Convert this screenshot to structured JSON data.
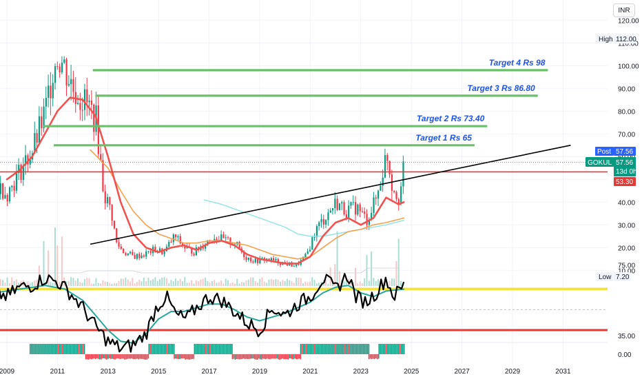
{
  "currency_button": "INR",
  "chart_data": {
    "type": "candlestick",
    "symbol": "GOKUL",
    "timeframe_note": "13d 0h",
    "x_ticks": [
      "2009",
      "2011",
      "2013",
      "2015",
      "2017",
      "2019",
      "2021",
      "2023",
      "2025",
      "2027",
      "2029",
      "2031"
    ],
    "price_axis": {
      "ylim": [
        0,
        122
      ],
      "ticks": [
        "10.00",
        "20.00",
        "30.00",
        "40.00",
        "50.00",
        "60.00",
        "70.00",
        "80.00",
        "90.00",
        "100.00",
        "110.00",
        "120.00"
      ]
    },
    "indicator_axis": {
      "ticks": [
        "75.00",
        "35.00"
      ]
    },
    "histogram_axis": {
      "ticks": [
        "0.00"
      ]
    },
    "high": {
      "label": "High",
      "value": "112.00"
    },
    "low": {
      "label": "Low",
      "value": "7.20"
    },
    "post": {
      "label": "Post",
      "value": "57.56"
    },
    "last": {
      "label": "GOKUL",
      "value": "57.56",
      "countdown": "13d 0h"
    },
    "support_level": {
      "value": "53.30",
      "price": 53.3,
      "color": "#e53935"
    },
    "targets": [
      {
        "label": "Target 1 Rs 65",
        "price": 65,
        "from_year": 2010.85,
        "to_year": 2027.5
      },
      {
        "label": "Target 2 Rs 73.40",
        "price": 73.4,
        "from_year": 2010.45,
        "to_year": 2028.0
      },
      {
        "label": "Target 3 Rs 86.80",
        "price": 86.8,
        "from_year": 2012.5,
        "to_year": 2030.0
      },
      {
        "label": "Target 4 Rs 98",
        "price": 98,
        "from_year": 2012.4,
        "to_year": 2030.4
      }
    ],
    "trendline": {
      "from": [
        2012.3,
        21.5
      ],
      "to": [
        2031.3,
        65.0
      ]
    },
    "price_series": [
      [
        2008.5,
        48
      ],
      [
        2009.0,
        44
      ],
      [
        2009.5,
        54
      ],
      [
        2010.0,
        63
      ],
      [
        2010.5,
        80
      ],
      [
        2010.8,
        100
      ],
      [
        2011.0,
        105
      ],
      [
        2011.3,
        98
      ],
      [
        2011.6,
        90
      ],
      [
        2011.9,
        86
      ],
      [
        2012.2,
        82
      ],
      [
        2012.5,
        76
      ],
      [
        2012.8,
        44
      ],
      [
        2013.1,
        36
      ],
      [
        2013.3,
        22
      ],
      [
        2013.6,
        18
      ],
      [
        2014.0,
        16
      ],
      [
        2014.4,
        17
      ],
      [
        2014.8,
        19
      ],
      [
        2015.2,
        18
      ],
      [
        2015.6,
        25
      ],
      [
        2016.0,
        20
      ],
      [
        2016.4,
        18
      ],
      [
        2016.8,
        22
      ],
      [
        2017.2,
        25
      ],
      [
        2017.6,
        23
      ],
      [
        2018.0,
        22
      ],
      [
        2018.4,
        16
      ],
      [
        2018.8,
        14
      ],
      [
        2019.2,
        15
      ],
      [
        2019.6,
        14
      ],
      [
        2020.0,
        13
      ],
      [
        2020.4,
        12
      ],
      [
        2020.8,
        16
      ],
      [
        2021.2,
        28
      ],
      [
        2021.6,
        34
      ],
      [
        2022.0,
        40
      ],
      [
        2022.4,
        36
      ],
      [
        2022.8,
        38
      ],
      [
        2023.2,
        32
      ],
      [
        2023.6,
        42
      ],
      [
        2024.0,
        62
      ],
      [
        2024.2,
        48
      ],
      [
        2024.5,
        42
      ],
      [
        2024.7,
        57.56
      ]
    ],
    "ema_short": [
      [
        2009.0,
        50
      ],
      [
        2009.5,
        54
      ],
      [
        2010.0,
        60
      ],
      [
        2010.5,
        70
      ],
      [
        2011.0,
        80
      ],
      [
        2011.5,
        86
      ],
      [
        2012.0,
        85
      ],
      [
        2012.5,
        78
      ],
      [
        2013.0,
        60
      ],
      [
        2013.5,
        40
      ],
      [
        2014.0,
        26
      ],
      [
        2014.5,
        20
      ],
      [
        2015.0,
        18
      ],
      [
        2015.5,
        20
      ],
      [
        2016.0,
        21
      ],
      [
        2016.5,
        19
      ],
      [
        2017.0,
        22
      ],
      [
        2017.5,
        23
      ],
      [
        2018.0,
        21
      ],
      [
        2018.5,
        17
      ],
      [
        2019.0,
        15
      ],
      [
        2019.5,
        14
      ],
      [
        2020.0,
        13
      ],
      [
        2020.5,
        13
      ],
      [
        2021.0,
        16
      ],
      [
        2021.5,
        25
      ],
      [
        2022.0,
        31
      ],
      [
        2022.5,
        33
      ],
      [
        2023.0,
        30
      ],
      [
        2023.5,
        33
      ],
      [
        2024.0,
        42
      ],
      [
        2024.5,
        39
      ],
      [
        2024.7,
        40
      ]
    ],
    "ema_medium": [
      [
        2012.3,
        63
      ],
      [
        2013.0,
        55
      ],
      [
        2013.5,
        45
      ],
      [
        2014.0,
        36
      ],
      [
        2014.5,
        30
      ],
      [
        2015.0,
        26
      ],
      [
        2015.5,
        24
      ],
      [
        2016.0,
        22
      ],
      [
        2016.5,
        22
      ],
      [
        2017.0,
        23
      ],
      [
        2017.5,
        23
      ],
      [
        2018.0,
        22
      ],
      [
        2018.5,
        21
      ],
      [
        2019.0,
        19
      ],
      [
        2019.5,
        17
      ],
      [
        2020.0,
        16
      ],
      [
        2020.5,
        15
      ],
      [
        2021.0,
        16
      ],
      [
        2021.5,
        20
      ],
      [
        2022.0,
        24
      ],
      [
        2022.5,
        27
      ],
      [
        2023.0,
        28
      ],
      [
        2023.5,
        30
      ],
      [
        2024.0,
        31
      ],
      [
        2024.7,
        33
      ]
    ],
    "ema_long": [
      [
        2016.8,
        41
      ],
      [
        2017.5,
        39
      ],
      [
        2018.0,
        37
      ],
      [
        2018.5,
        35
      ],
      [
        2019.0,
        33
      ],
      [
        2019.5,
        31
      ],
      [
        2020.0,
        29
      ],
      [
        2020.5,
        26
      ],
      [
        2021.0,
        25
      ],
      [
        2021.5,
        25
      ],
      [
        2022.0,
        26
      ],
      [
        2022.5,
        27
      ],
      [
        2023.0,
        28
      ],
      [
        2023.5,
        29
      ],
      [
        2024.0,
        30
      ],
      [
        2024.7,
        32
      ]
    ],
    "oscillator_levels": [
      {
        "value": 62,
        "color": "#f7e13a"
      },
      {
        "value": 40,
        "color": "#e53935"
      }
    ],
    "oscillator_main": [
      [
        2008.5,
        60
      ],
      [
        2009.0,
        58
      ],
      [
        2009.5,
        63
      ],
      [
        2010.0,
        64
      ],
      [
        2010.5,
        68
      ],
      [
        2011.0,
        66
      ],
      [
        2011.5,
        60
      ],
      [
        2012.0,
        52
      ],
      [
        2012.5,
        42
      ],
      [
        2013.0,
        34
      ],
      [
        2013.5,
        30
      ],
      [
        2014.0,
        32
      ],
      [
        2014.5,
        38
      ],
      [
        2014.9,
        52
      ],
      [
        2015.3,
        58
      ],
      [
        2015.7,
        48
      ],
      [
        2016.1,
        46
      ],
      [
        2016.5,
        52
      ],
      [
        2017.0,
        58
      ],
      [
        2017.5,
        56
      ],
      [
        2018.0,
        50
      ],
      [
        2018.5,
        44
      ],
      [
        2019.0,
        40
      ],
      [
        2019.5,
        52
      ],
      [
        2020.0,
        48
      ],
      [
        2020.5,
        54
      ],
      [
        2021.0,
        58
      ],
      [
        2021.5,
        68
      ],
      [
        2022.0,
        62
      ],
      [
        2022.5,
        70
      ],
      [
        2022.8,
        58
      ],
      [
        2023.2,
        55
      ],
      [
        2023.6,
        60
      ],
      [
        2024.0,
        68
      ],
      [
        2024.3,
        58
      ],
      [
        2024.7,
        64
      ]
    ],
    "oscillator_signal": [
      [
        2008.5,
        60
      ],
      [
        2009.5,
        62
      ],
      [
        2010.5,
        64
      ],
      [
        2011.3,
        62
      ],
      [
        2012.0,
        56
      ],
      [
        2012.5,
        48
      ],
      [
        2013.0,
        40
      ],
      [
        2013.5,
        34
      ],
      [
        2014.0,
        33
      ],
      [
        2014.5,
        38
      ],
      [
        2015.0,
        46
      ],
      [
        2015.5,
        50
      ],
      [
        2016.0,
        50
      ],
      [
        2016.5,
        52
      ],
      [
        2017.0,
        54
      ],
      [
        2017.5,
        54
      ],
      [
        2018.0,
        51
      ],
      [
        2018.5,
        47
      ],
      [
        2019.0,
        45
      ],
      [
        2019.5,
        47
      ],
      [
        2020.0,
        49
      ],
      [
        2020.5,
        52
      ],
      [
        2021.0,
        55
      ],
      [
        2021.5,
        60
      ],
      [
        2022.0,
        63
      ],
      [
        2022.5,
        64
      ],
      [
        2023.0,
        60
      ],
      [
        2023.5,
        58
      ],
      [
        2024.0,
        61
      ],
      [
        2024.7,
        62
      ]
    ],
    "histogram_segments": [
      {
        "from": 2009.9,
        "to": 2012.1,
        "sign": 1
      },
      {
        "from": 2012.1,
        "to": 2014.6,
        "sign": -1
      },
      {
        "from": 2014.6,
        "to": 2015.6,
        "sign": 1
      },
      {
        "from": 2015.6,
        "to": 2016.4,
        "sign": -1
      },
      {
        "from": 2016.4,
        "to": 2017.9,
        "sign": 1
      },
      {
        "from": 2017.9,
        "to": 2020.6,
        "sign": -1
      },
      {
        "from": 2020.6,
        "to": 2023.3,
        "sign": 1
      },
      {
        "from": 2023.3,
        "to": 2023.7,
        "sign": -1
      },
      {
        "from": 2023.7,
        "to": 2024.7,
        "sign": 1
      }
    ],
    "colors": {
      "up": "#089981",
      "down": "#f23645",
      "ema_short": "#ef5350",
      "ema_medium": "#f5a04a",
      "ema_long": "#8fe3e6",
      "target_line": "#6abf69",
      "trendline": "#000000",
      "osc_main": "#000000",
      "osc_signal": "#26a69a",
      "post_tag": "#2962ff",
      "last_tag": "#089981"
    },
    "grid": true
  }
}
